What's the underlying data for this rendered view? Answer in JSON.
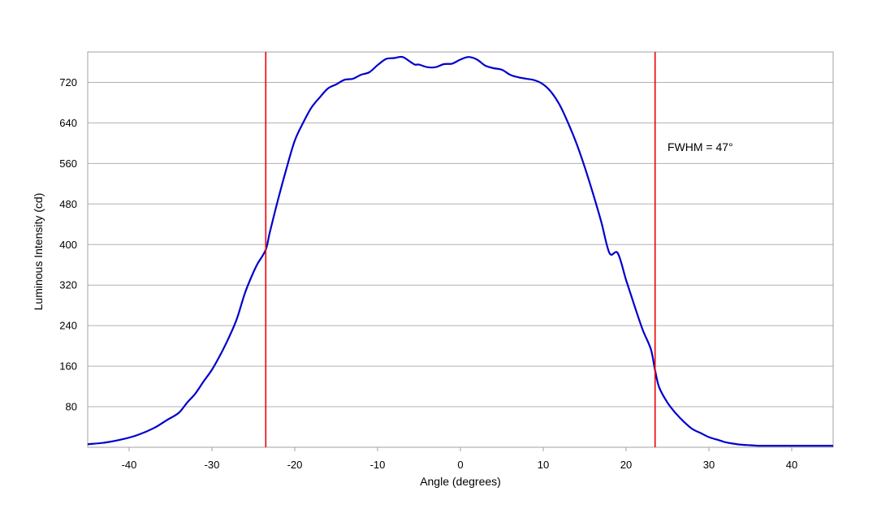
{
  "chart_data": {
    "type": "line",
    "title": "",
    "xlabel": "Angle (degrees)",
    "ylabel": "Luminous Intensity (cd)",
    "xlim": [
      -45,
      45
    ],
    "ylim": [
      0,
      780
    ],
    "xticks": [
      -40,
      -30,
      -20,
      -10,
      0,
      10,
      20,
      30,
      40
    ],
    "yticks": [
      80,
      160,
      240,
      320,
      400,
      480,
      560,
      640,
      720
    ],
    "grid": "horizontal",
    "legend": "none",
    "colors": {
      "curve": "#0000cc",
      "markers": "#ee0000",
      "grid": "#b0b0b0",
      "frame": "#a0a0a0"
    },
    "series": [
      {
        "x": [
          -45,
          -43,
          -41,
          -39,
          -37,
          -35.5,
          -34,
          -33,
          -32,
          -31,
          -30,
          -29,
          -28,
          -27,
          -26,
          -25,
          -24.5,
          -23.5,
          -23,
          -22,
          -21,
          -20,
          -19,
          -18,
          -17,
          -16,
          -15,
          -14,
          -13,
          -12,
          -11,
          -10,
          -9,
          -8,
          -7,
          -6,
          -5.5,
          -5,
          -4,
          -3,
          -2,
          -1,
          0,
          1,
          2,
          3,
          4,
          5,
          6,
          7,
          8,
          9,
          10,
          11,
          12,
          13,
          14,
          15,
          16,
          17,
          18,
          19,
          20,
          21,
          22,
          23,
          23.5,
          24,
          25,
          26,
          27,
          28,
          29,
          30,
          31,
          32,
          33,
          34,
          35,
          36,
          37,
          38,
          39,
          40,
          41,
          42,
          43,
          44,
          45
        ],
        "y": [
          6,
          9,
          15,
          24,
          38,
          53,
          68,
          88,
          106,
          130,
          153,
          182,
          215,
          253,
          305,
          345,
          362,
          390,
          425,
          490,
          550,
          605,
          640,
          670,
          690,
          708,
          716,
          725,
          727,
          735,
          740,
          754,
          766,
          768,
          770,
          760,
          755,
          755,
          750,
          750,
          756,
          757,
          765,
          770,
          765,
          753,
          748,
          745,
          735,
          730,
          727,
          724,
          716,
          700,
          675,
          640,
          600,
          553,
          501,
          445,
          383,
          383,
          330,
          280,
          232,
          193,
          152,
          118,
          88,
          67,
          50,
          36,
          28,
          20,
          15,
          10,
          7,
          5,
          4,
          3,
          3,
          3,
          3,
          3,
          3,
          3,
          3,
          3,
          3
        ]
      }
    ],
    "markers": [
      -23.5,
      23.5
    ],
    "annotations": [
      {
        "text": "FWHM = 47°",
        "x": 25,
        "y": 593
      }
    ]
  }
}
